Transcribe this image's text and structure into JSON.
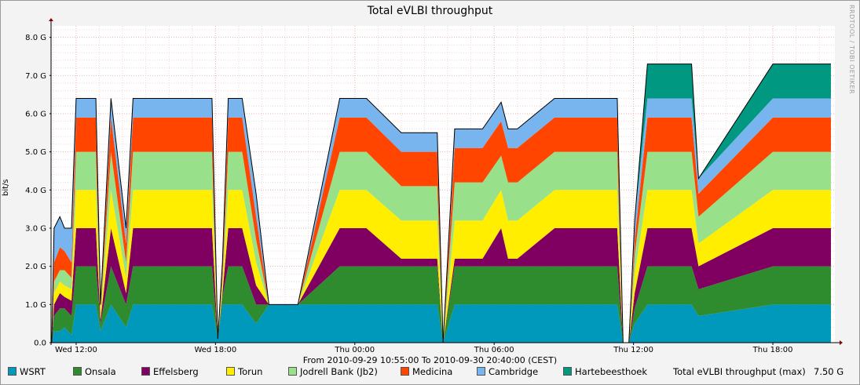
{
  "chart_data": {
    "type": "area",
    "stacked": true,
    "title": "Total eVLBI throughput",
    "ylabel": "bit/s",
    "subtitle": "From 2010-09-29 10:55:00 To 2010-09-30 20:40:00 (CEST)",
    "watermark": "RRDTOOL / TOBI OETIKER",
    "ylim": [
      0,
      8.3
    ],
    "y_ticks": [
      {
        "value": 0,
        "label": "0.0"
      },
      {
        "value": 1,
        "label": "1.0 G"
      },
      {
        "value": 2,
        "label": "2.0 G"
      },
      {
        "value": 3,
        "label": "3.0 G"
      },
      {
        "value": 4,
        "label": "4.0 G"
      },
      {
        "value": 5,
        "label": "5.0 G"
      },
      {
        "value": 6,
        "label": "6.0 G"
      },
      {
        "value": 7,
        "label": "7.0 G"
      },
      {
        "value": 8,
        "label": "8.0 G"
      }
    ],
    "x_ticks": [
      {
        "hour": 12,
        "label": "Wed 12:00"
      },
      {
        "hour": 18,
        "label": "Wed 18:00"
      },
      {
        "hour": 24,
        "label": "Thu 00:00"
      },
      {
        "hour": 30,
        "label": "Thu 06:00"
      },
      {
        "hour": 36,
        "label": "Thu 12:00"
      },
      {
        "hour": 42,
        "label": "Thu 18:00"
      }
    ],
    "xlim_hours": [
      10.92,
      44.67
    ],
    "grid": true,
    "x_hours": [
      10.95,
      11.05,
      11.3,
      11.5,
      11.8,
      12.0,
      12.15,
      12.85,
      13.05,
      13.5,
      14.15,
      14.45,
      14.9,
      15.25,
      16.1,
      17.45,
      17.85,
      18.1,
      18.3,
      18.55,
      19.15,
      19.75,
      20.3,
      21.3,
      21.55,
      23.35,
      23.6,
      24.5,
      26.0,
      27.55,
      27.8,
      28.3,
      29.0,
      29.5,
      30.3,
      30.6,
      31.0,
      32.6,
      32.9,
      33.2,
      35.3,
      35.55,
      35.8,
      36.05,
      36.6,
      38.5,
      38.8,
      42.0,
      44.0,
      44.5
    ],
    "series": [
      {
        "name": "WSRT",
        "color": "#0099bb",
        "values": [
          0.0,
          0.3,
          0.3,
          0.4,
          0.2,
          1.0,
          1.0,
          1.0,
          0.3,
          1.0,
          0.4,
          1.0,
          1.0,
          1.0,
          1.0,
          1.0,
          1.0,
          0.1,
          1.0,
          1.0,
          1.0,
          0.5,
          1.0,
          1.0,
          1.0,
          1.0,
          1.0,
          1.0,
          1.0,
          1.0,
          0.0,
          1.0,
          1.0,
          1.0,
          1.0,
          1.0,
          1.0,
          1.0,
          1.0,
          1.0,
          1.0,
          0.0,
          0.0,
          0.5,
          1.0,
          1.0,
          0.7,
          1.0,
          1.0,
          1.0
        ]
      },
      {
        "name": "Onsala",
        "color": "#2e8b2e",
        "values": [
          0.0,
          0.4,
          0.6,
          0.5,
          0.5,
          1.0,
          1.0,
          1.0,
          0.2,
          1.0,
          0.6,
          1.0,
          1.0,
          1.0,
          1.0,
          1.0,
          1.0,
          0.0,
          0.2,
          1.0,
          1.0,
          0.5,
          0.0,
          0.0,
          0.0,
          1.0,
          1.0,
          1.0,
          1.0,
          1.0,
          0.0,
          1.0,
          1.0,
          1.0,
          1.0,
          1.0,
          1.0,
          1.0,
          1.0,
          1.0,
          1.0,
          0.0,
          0.0,
          0.4,
          1.0,
          1.0,
          0.7,
          1.0,
          1.0,
          1.0
        ]
      },
      {
        "name": "Effelsberg",
        "color": "#7f0060",
        "values": [
          0.0,
          0.3,
          0.4,
          0.3,
          0.4,
          1.0,
          1.0,
          1.0,
          0.1,
          1.0,
          0.3,
          1.0,
          1.0,
          1.0,
          1.0,
          1.0,
          1.0,
          0.0,
          0.1,
          1.0,
          1.0,
          0.5,
          0.0,
          0.0,
          0.0,
          1.0,
          1.0,
          1.0,
          0.2,
          0.2,
          0.0,
          0.2,
          0.2,
          0.2,
          1.0,
          0.2,
          0.2,
          1.0,
          1.0,
          1.0,
          1.0,
          0.0,
          0.0,
          0.4,
          1.0,
          1.0,
          0.6,
          1.0,
          1.0,
          1.0
        ]
      },
      {
        "name": "Torun",
        "color": "#ffee00",
        "values": [
          0.0,
          0.3,
          0.3,
          0.3,
          0.3,
          1.0,
          1.0,
          1.0,
          0.2,
          1.0,
          0.4,
          1.0,
          1.0,
          1.0,
          1.0,
          1.0,
          1.0,
          0.0,
          0.2,
          1.0,
          1.0,
          0.6,
          0.0,
          0.0,
          0.0,
          1.0,
          1.0,
          1.0,
          1.0,
          1.0,
          0.0,
          1.0,
          1.0,
          1.0,
          1.0,
          1.0,
          1.0,
          1.0,
          1.0,
          1.0,
          1.0,
          0.0,
          0.0,
          0.5,
          1.0,
          1.0,
          0.6,
          1.0,
          1.0,
          1.0
        ]
      },
      {
        "name": "Jodrell Bank (Jb2)",
        "color": "#99e08a",
        "values": [
          0.0,
          0.3,
          0.3,
          0.4,
          0.3,
          1.0,
          1.0,
          1.0,
          0.1,
          1.0,
          0.4,
          1.0,
          1.0,
          1.0,
          1.0,
          1.0,
          1.0,
          0.0,
          0.2,
          1.0,
          1.0,
          0.6,
          0.0,
          0.0,
          0.0,
          1.0,
          1.0,
          1.0,
          0.9,
          0.9,
          0.0,
          1.0,
          1.0,
          1.0,
          0.9,
          1.0,
          1.0,
          1.0,
          1.0,
          1.0,
          1.0,
          0.0,
          0.0,
          0.5,
          1.0,
          1.0,
          0.7,
          1.0,
          1.0,
          1.0
        ]
      },
      {
        "name": "Medicina",
        "color": "#ff4500",
        "values": [
          0.0,
          0.5,
          0.6,
          0.5,
          0.4,
          0.9,
          0.9,
          0.9,
          0.1,
          0.9,
          0.5,
          0.9,
          0.9,
          0.9,
          0.9,
          0.9,
          0.9,
          0.0,
          0.2,
          0.9,
          0.9,
          0.6,
          0.0,
          0.0,
          0.0,
          0.9,
          0.9,
          0.9,
          0.9,
          0.9,
          0.0,
          0.9,
          0.9,
          0.9,
          0.9,
          0.9,
          0.9,
          0.9,
          0.9,
          0.9,
          0.9,
          0.0,
          0.0,
          0.4,
          0.9,
          0.9,
          0.6,
          0.9,
          0.9,
          0.9
        ]
      },
      {
        "name": "Cambridge",
        "color": "#78b4ee",
        "values": [
          0.0,
          0.9,
          0.8,
          0.6,
          0.9,
          0.5,
          0.5,
          0.5,
          0.0,
          0.5,
          0.4,
          0.5,
          0.5,
          0.5,
          0.5,
          0.5,
          0.5,
          0.0,
          0.2,
          0.5,
          0.5,
          0.6,
          0.0,
          0.0,
          0.0,
          0.5,
          0.5,
          0.5,
          0.5,
          0.5,
          0.0,
          0.5,
          0.5,
          0.5,
          0.5,
          0.5,
          0.5,
          0.5,
          0.5,
          0.5,
          0.5,
          0.0,
          0.0,
          0.5,
          0.5,
          0.5,
          0.4,
          0.5,
          0.5,
          0.5
        ]
      },
      {
        "name": "Hartebeesthoek",
        "color": "#009880",
        "values": [
          0.0,
          0.0,
          0.0,
          0.0,
          0.0,
          0.0,
          0.0,
          0.0,
          0.0,
          0.0,
          0.0,
          0.0,
          0.0,
          0.0,
          0.0,
          0.0,
          0.0,
          0.0,
          0.0,
          0.0,
          0.0,
          0.0,
          0.0,
          0.0,
          0.0,
          0.0,
          0.0,
          0.0,
          0.0,
          0.0,
          0.0,
          0.0,
          0.0,
          0.0,
          0.0,
          0.0,
          0.0,
          0.0,
          0.0,
          0.0,
          0.0,
          0.0,
          0.0,
          0.0,
          0.9,
          0.9,
          0.0,
          0.9,
          0.9,
          0.9
        ]
      }
    ],
    "total_label": "Total eVLBI throughput (max)",
    "total_max": "7.50 G"
  }
}
